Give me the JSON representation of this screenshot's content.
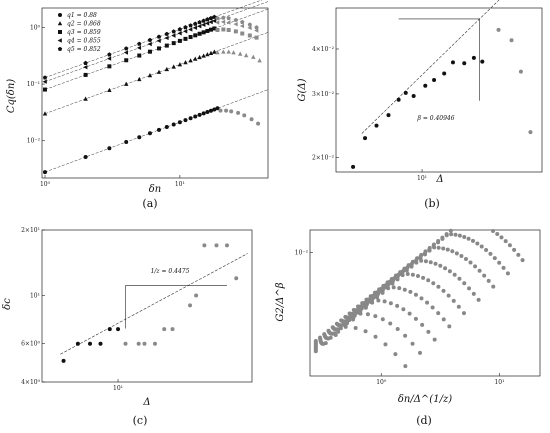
{
  "labels": {
    "a": "(a)",
    "b": "(b)",
    "c": "(c)",
    "d": "(d)"
  },
  "chart_data": [
    {
      "id": "a",
      "type": "scatter",
      "xlabel": "δn",
      "ylabel": "Cq(δn)",
      "xscale": "log",
      "yscale": "log",
      "xlim": [
        0.95,
        45
      ],
      "ylim": [
        0.0022,
        2.2
      ],
      "xticks": [
        {
          "v": 1,
          "label": "10⁰"
        },
        {
          "v": 10,
          "label": "10¹"
        }
      ],
      "yticks": [
        {
          "v": 0.01,
          "label": "10⁻²"
        },
        {
          "v": 0.1,
          "label": "10⁻¹"
        },
        {
          "v": 1,
          "label": "10⁰"
        }
      ],
      "legend": [
        {
          "marker": "circle",
          "label": "q1 = 0.88"
        },
        {
          "marker": "triangle-up",
          "label": "q2 = 0.868"
        },
        {
          "marker": "square",
          "label": "q3 = 0.859"
        },
        {
          "marker": "triangle-left",
          "label": "q4 = 0.855"
        },
        {
          "marker": "pentagon",
          "label": "q5 = 0.852"
        }
      ],
      "series": [
        {
          "marker": "circle",
          "slope": 0.88,
          "c": 0.0028,
          "black_x": [
            1,
            2,
            3,
            4,
            5,
            6,
            7,
            8,
            9,
            10,
            11,
            12,
            13,
            14,
            15,
            16,
            17,
            18,
            19
          ],
          "gray": [
            [
              20,
              0.034
            ],
            [
              22,
              0.034
            ],
            [
              24,
              0.033
            ],
            [
              27,
              0.031
            ],
            [
              30,
              0.028
            ],
            [
              34,
              0.024
            ],
            [
              38,
              0.02
            ]
          ]
        },
        {
          "marker": "triangle-up",
          "slope": 0.868,
          "c": 0.03,
          "black_x": [
            1,
            2,
            3,
            4,
            5,
            6,
            7,
            8,
            9,
            10,
            11,
            12,
            13,
            14,
            15,
            16,
            17,
            18
          ],
          "gray": [
            [
              19,
              0.36
            ],
            [
              21,
              0.37
            ],
            [
              23,
              0.37
            ],
            [
              25,
              0.36
            ],
            [
              28,
              0.34
            ],
            [
              31,
              0.32
            ],
            [
              35,
              0.3
            ],
            [
              39,
              0.26
            ]
          ]
        },
        {
          "marker": "square",
          "slope": 0.859,
          "c": 0.08,
          "black_x": [
            1,
            2,
            3,
            4,
            5,
            6,
            7,
            8,
            9,
            10,
            11,
            12,
            13,
            14,
            15,
            16,
            17,
            18
          ],
          "gray": [
            [
              19,
              0.9
            ],
            [
              21,
              0.92
            ],
            [
              23,
              0.9
            ],
            [
              26,
              0.85
            ],
            [
              29,
              0.78
            ],
            [
              33,
              0.72
            ],
            [
              37,
              0.66
            ]
          ]
        },
        {
          "marker": "triangle-left",
          "slope": 0.855,
          "c": 0.11,
          "black_x": [
            1,
            2,
            3,
            4,
            5,
            6,
            7,
            8,
            9,
            10,
            11,
            12,
            13,
            14,
            15,
            16,
            17,
            18
          ],
          "gray": [
            [
              19,
              1.22
            ],
            [
              21,
              1.25
            ],
            [
              23,
              1.22
            ],
            [
              26,
              1.14
            ],
            [
              29,
              1.06
            ],
            [
              33,
              0.98
            ],
            [
              37,
              0.88
            ]
          ]
        },
        {
          "marker": "pentagon",
          "slope": 0.852,
          "c": 0.13,
          "black_x": [
            1,
            2,
            3,
            4,
            5,
            6,
            7,
            8,
            9,
            10,
            11,
            12,
            13,
            14,
            15,
            16,
            17,
            18
          ],
          "gray": [
            [
              19,
              1.45
            ],
            [
              21,
              1.48
            ],
            [
              23,
              1.45
            ],
            [
              26,
              1.35
            ],
            [
              29,
              1.24
            ],
            [
              33,
              1.12
            ],
            [
              37,
              1.0
            ]
          ]
        }
      ]
    },
    {
      "id": "b",
      "type": "scatter",
      "xlabel": "Δ",
      "ylabel": "G(Δ)",
      "xscale": "log",
      "yscale": "log",
      "xlim": [
        2.7,
        62
      ],
      "ylim": [
        0.0182,
        0.052
      ],
      "xticks": [
        {
          "v": 10,
          "label": "10¹"
        }
      ],
      "yticks": [
        {
          "v": 0.02,
          "label": "2×10⁻²"
        },
        {
          "v": 0.03,
          "label": "3×10⁻²"
        },
        {
          "v": 0.04,
          "label": "4×10⁻²"
        }
      ],
      "fit": {
        "x0": 4,
        "x1": 34,
        "c": 0.0132,
        "beta": 0.40946
      },
      "annotation": "β = 0.40946",
      "black": [
        [
          3.5,
          0.0188
        ],
        [
          4.2,
          0.0226
        ],
        [
          5,
          0.0245
        ],
        [
          6,
          0.0262
        ],
        [
          7,
          0.0289
        ],
        [
          7.8,
          0.0302
        ],
        [
          8.8,
          0.0296
        ],
        [
          10.5,
          0.0316
        ],
        [
          12,
          0.0328
        ],
        [
          14,
          0.0342
        ],
        [
          16,
          0.0367
        ],
        [
          19,
          0.0365
        ],
        [
          22,
          0.0378
        ],
        [
          25,
          0.0369
        ]
      ],
      "gray": [
        [
          32,
          0.0452
        ],
        [
          39,
          0.0423
        ],
        [
          45,
          0.0346
        ],
        [
          52,
          0.0235
        ]
      ]
    },
    {
      "id": "c",
      "type": "scatter",
      "xlabel": "Δ",
      "ylabel": "δc",
      "xscale": "log",
      "yscale": "log",
      "xlim": [
        3.8,
        55
      ],
      "ylim": [
        4.0,
        20.0
      ],
      "xticks": [
        {
          "v": 10,
          "label": "10¹"
        }
      ],
      "yticks": [
        {
          "v": 4,
          "label": "4×10⁰"
        },
        {
          "v": 6,
          "label": "6×10⁰"
        },
        {
          "v": 10,
          "label": "10¹"
        },
        {
          "v": 20,
          "label": "2×10¹"
        }
      ],
      "fit": {
        "x0": 4.8,
        "x1": 52,
        "c": 2.66,
        "slope": 0.4475
      },
      "annotation": "1/z = 0.4475",
      "black": [
        [
          5,
          5
        ],
        [
          6,
          6
        ],
        [
          7,
          6
        ],
        [
          8,
          6
        ],
        [
          9,
          7
        ],
        [
          10,
          7
        ]
      ],
      "gray": [
        [
          11,
          6
        ],
        [
          13,
          6
        ],
        [
          14,
          6
        ],
        [
          16,
          6
        ],
        [
          18,
          7
        ],
        [
          20,
          7
        ],
        [
          25,
          9
        ],
        [
          27,
          10
        ],
        [
          30,
          17
        ],
        [
          35,
          17
        ],
        [
          40,
          17
        ],
        [
          45,
          12
        ]
      ]
    },
    {
      "id": "d",
      "type": "scatter",
      "xlabel": "δn/Δ^(1/z)",
      "ylabel": "G2/Δ^β",
      "xscale": "log",
      "yscale": "log",
      "xlim": [
        0.25,
        22
      ],
      "ylim": [
        0.00075,
        0.016
      ],
      "xticks": [
        {
          "v": 1,
          "label": "10⁰"
        },
        {
          "v": 10,
          "label": "10¹"
        }
      ],
      "yticks": [
        {
          "v": 0.01,
          "label": "10⁻²"
        }
      ]
    }
  ]
}
